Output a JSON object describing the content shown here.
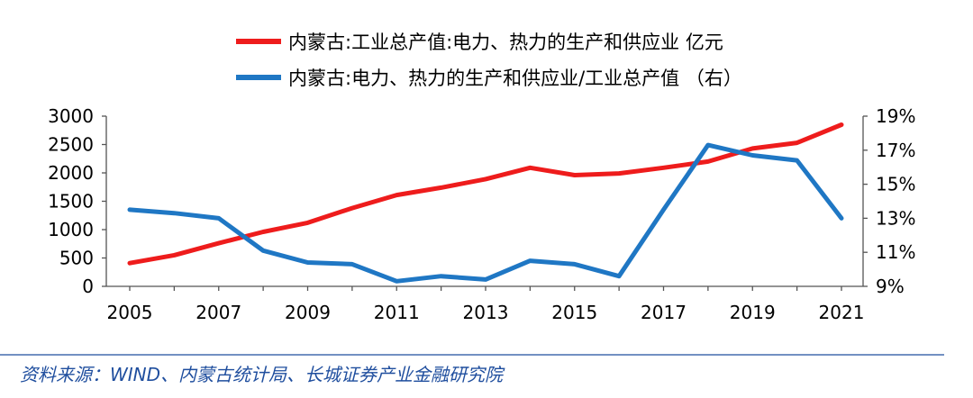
{
  "chart_data": {
    "type": "line",
    "categories": [
      "2005",
      "2006",
      "2007",
      "2008",
      "2009",
      "2010",
      "2011",
      "2012",
      "2013",
      "2014",
      "2015",
      "2016",
      "2017",
      "2018",
      "2019",
      "2020",
      "2021"
    ],
    "x_tick_labels": [
      "2005",
      "2007",
      "2009",
      "2011",
      "2013",
      "2015",
      "2017",
      "2019",
      "2021"
    ],
    "y_left": {
      "ticks": [
        0,
        500,
        1000,
        1500,
        2000,
        2500,
        3000
      ],
      "range": [
        0,
        3000
      ]
    },
    "y_right": {
      "ticks": [
        "9%",
        "11%",
        "13%",
        "15%",
        "17%",
        "19%"
      ],
      "range": [
        9,
        19
      ]
    },
    "series": [
      {
        "name": "内蒙古:工业总产值:电力、热力的生产和供应业 亿元",
        "axis": "left",
        "color": "#ee1c1c",
        "values": [
          410,
          550,
          760,
          960,
          1120,
          1380,
          1610,
          1740,
          1890,
          2090,
          1960,
          1990,
          2090,
          2200,
          2430,
          2530,
          2850
        ]
      },
      {
        "name": "内蒙古:电力、热力的生产和供应业/工业总产值 （右）",
        "axis": "right",
        "color": "#1f77c4",
        "values": [
          13.5,
          13.3,
          13.0,
          11.1,
          10.4,
          10.3,
          9.3,
          9.6,
          9.4,
          10.5,
          10.3,
          9.6,
          13.5,
          17.3,
          16.7,
          16.4,
          13.0
        ]
      }
    ]
  },
  "source": "资料来源：WIND、内蒙古统计局、长城证券产业金融研究院",
  "colors": {
    "divider": "#1f4e9e"
  }
}
